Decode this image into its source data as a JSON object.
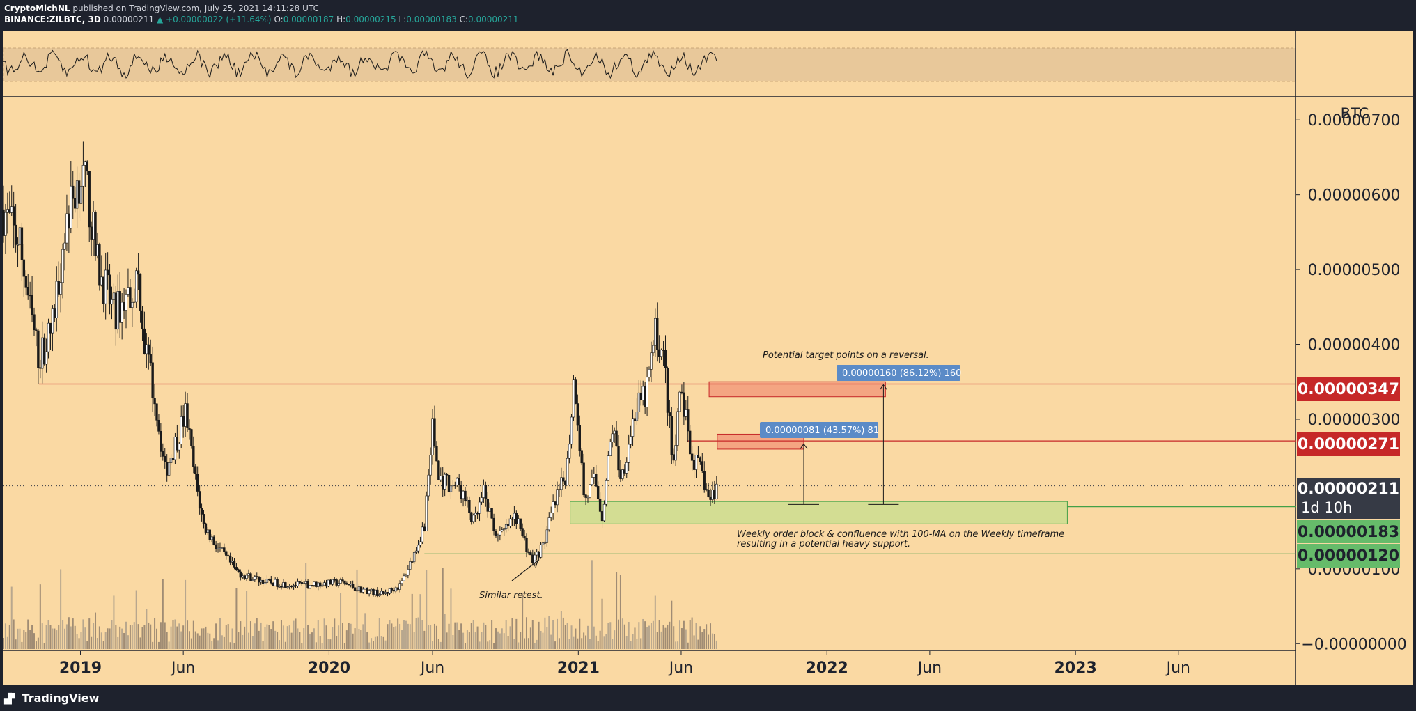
{
  "header": {
    "author": "CryptoMichNL",
    "published": "published on TradingView.com, July 25, 2021 14:11:28 UTC",
    "symbol": "BINANCE:ZILBTC, 3D",
    "last": "0.00000211",
    "change": "▲ +0.00000022 (+11.64%)",
    "o_label": "O:",
    "o_value": "0.00000187",
    "h_label": "H:",
    "h_value": "0.00000215",
    "l_label": "L:",
    "l_value": "0.00000183",
    "c_label": "C:",
    "c_value": "0.00000211"
  },
  "footer": {
    "logo_text": "TradingView"
  },
  "colors": {
    "background": "#fad9a3",
    "frame": "#1e222d",
    "candle": "#1a1a1a",
    "resistance": "#c62828",
    "support": "#43a047",
    "last_price": "#363a45",
    "measure_label": "#5b8bc7"
  },
  "chart_data": {
    "type": "candlestick",
    "symbol": "BINANCE:ZILBTC",
    "interval": "3D",
    "y_unit": "BTC",
    "ylim": [
      -1e-07,
      7.3e-06
    ],
    "y_ticks": [
      {
        "value": 7e-06,
        "label": "0.00000700"
      },
      {
        "value": 6e-06,
        "label": "0.00000600"
      },
      {
        "value": 5e-06,
        "label": "0.00000500"
      },
      {
        "value": 4e-06,
        "label": "0.00000400"
      },
      {
        "value": 3e-06,
        "label": "0.00000300"
      },
      {
        "value": 1e-06,
        "label": "0.00000100"
      },
      {
        "value": 0,
        "label": "−0.00000000"
      }
    ],
    "x_range": [
      "2018-09-10",
      "2023-11-20"
    ],
    "x_ticks": [
      {
        "date": "2019-01-01",
        "label": "2019"
      },
      {
        "date": "2019-06-01",
        "label": "Jun"
      },
      {
        "date": "2020-01-01",
        "label": "2020"
      },
      {
        "date": "2020-06-01",
        "label": "Jun"
      },
      {
        "date": "2021-01-01",
        "label": "2021"
      },
      {
        "date": "2021-06-01",
        "label": "Jun"
      },
      {
        "date": "2022-01-01",
        "label": "2022"
      },
      {
        "date": "2022-06-01",
        "label": "Jun"
      },
      {
        "date": "2023-01-01",
        "label": "2023"
      },
      {
        "date": "2023-06-01",
        "label": "Jun"
      }
    ],
    "price_path": [
      [
        "2018-09-10",
        5.8e-06
      ],
      [
        "2018-10-05",
        5.3e-06
      ],
      [
        "2018-10-20",
        4.4e-06
      ],
      [
        "2018-11-01",
        3.8e-06
      ],
      [
        "2018-11-20",
        4.2e-06
      ],
      [
        "2018-12-10",
        5.6e-06
      ],
      [
        "2019-01-01",
        6.3e-06
      ],
      [
        "2019-01-12",
        6e-06
      ],
      [
        "2019-01-25",
        5.1e-06
      ],
      [
        "2019-02-20",
        4.4e-06
      ],
      [
        "2019-03-15",
        4.7e-06
      ],
      [
        "2019-03-28",
        4.9e-06
      ],
      [
        "2019-04-05",
        4e-06
      ],
      [
        "2019-04-20",
        3.3e-06
      ],
      [
        "2019-05-05",
        2.3e-06
      ],
      [
        "2019-05-25",
        2.8e-06
      ],
      [
        "2019-06-05",
        3.1e-06
      ],
      [
        "2019-06-15",
        2.4e-06
      ],
      [
        "2019-06-30",
        1.6e-06
      ],
      [
        "2019-07-20",
        1.3e-06
      ],
      [
        "2019-08-20",
        9.5e-07
      ],
      [
        "2019-10-01",
        8.2e-07
      ],
      [
        "2019-11-20",
        7.8e-07
      ],
      [
        "2020-01-20",
        8.2e-07
      ],
      [
        "2020-02-10",
        7.4e-07
      ],
      [
        "2020-03-20",
        6.6e-07
      ],
      [
        "2020-04-15",
        7.8e-07
      ],
      [
        "2020-05-05",
        1.2e-06
      ],
      [
        "2020-05-20",
        1.6e-06
      ],
      [
        "2020-06-01",
        2.9e-06
      ],
      [
        "2020-06-10",
        2.2e-06
      ],
      [
        "2020-07-10",
        2.1e-06
      ],
      [
        "2020-08-01",
        1.6e-06
      ],
      [
        "2020-08-15",
        2e-06
      ],
      [
        "2020-09-05",
        1.4e-06
      ],
      [
        "2020-10-01",
        1.7e-06
      ],
      [
        "2020-10-25",
        1.1e-06
      ],
      [
        "2020-11-10",
        1.3e-06
      ],
      [
        "2020-11-25",
        1.8e-06
      ],
      [
        "2020-12-15",
        2.3e-06
      ],
      [
        "2020-12-26",
        3.6e-06
      ],
      [
        "2021-01-10",
        1.9e-06
      ],
      [
        "2021-01-25",
        2.2e-06
      ],
      [
        "2021-02-05",
        1.7e-06
      ],
      [
        "2021-02-20",
        2.9e-06
      ],
      [
        "2021-03-05",
        2.2e-06
      ],
      [
        "2021-03-25",
        3.1e-06
      ],
      [
        "2021-04-10",
        3.3e-06
      ],
      [
        "2021-04-25",
        4.2e-06
      ],
      [
        "2021-05-08",
        3.7e-06
      ],
      [
        "2021-05-20",
        2.3e-06
      ],
      [
        "2021-06-01",
        3.4e-06
      ],
      [
        "2021-06-15",
        2.5e-06
      ],
      [
        "2021-07-01",
        2.3e-06
      ],
      [
        "2021-07-12",
        1.9e-06
      ],
      [
        "2021-07-24",
        2.1e-06
      ]
    ],
    "volume_note": "Volume histogram drawn along the bottom of the price pane",
    "annotations": {
      "resistance_1": {
        "value": 3.47e-06,
        "label": "0.00000347",
        "from": "2018-11-01"
      },
      "resistance_2": {
        "value": 2.71e-06,
        "label": "0.00000271",
        "from": "2021-06-10"
      },
      "support_1": {
        "value": 1.83e-06,
        "label": "0.00000183"
      },
      "support_2": {
        "value": 1.2e-06,
        "label": "0.00000120",
        "from": "2020-05-20"
      },
      "last_price": {
        "value": 2.11e-06,
        "label": "0.00000211",
        "countdown": "1d 10h"
      },
      "target_zone_high": {
        "from": "2021-07-12",
        "to": "2022-03-28",
        "low": 3.3e-06,
        "high": 3.5e-06
      },
      "target_zone_mid": {
        "from": "2021-07-24",
        "to": "2021-11-28",
        "low": 2.6e-06,
        "high": 2.8e-06
      },
      "order_block_zone": {
        "from": "2020-12-20",
        "to": "2022-12-20",
        "low": 1.6e-06,
        "high": 1.9e-06
      },
      "measure_1": {
        "label": "0.00000081 (43.57%) 81",
        "date": "2021-11-28",
        "from_value": 1.86e-06,
        "to_value": 2.67e-06
      },
      "measure_2": {
        "label": "0.00000160 (86.12%) 160",
        "date": "2022-03-25",
        "from_value": 1.86e-06,
        "to_value": 3.46e-06
      },
      "text_target": "Potential target points on a reversal.",
      "text_support_line1": "Weekly order block & confluence with 100-MA on the Weekly timeframe",
      "text_support_line2": "resulting in a potential heavy support.",
      "text_retest": "Similar retest."
    },
    "oscillator_pane": {
      "note": "Oscillator line with shaded band at top of chart"
    }
  }
}
